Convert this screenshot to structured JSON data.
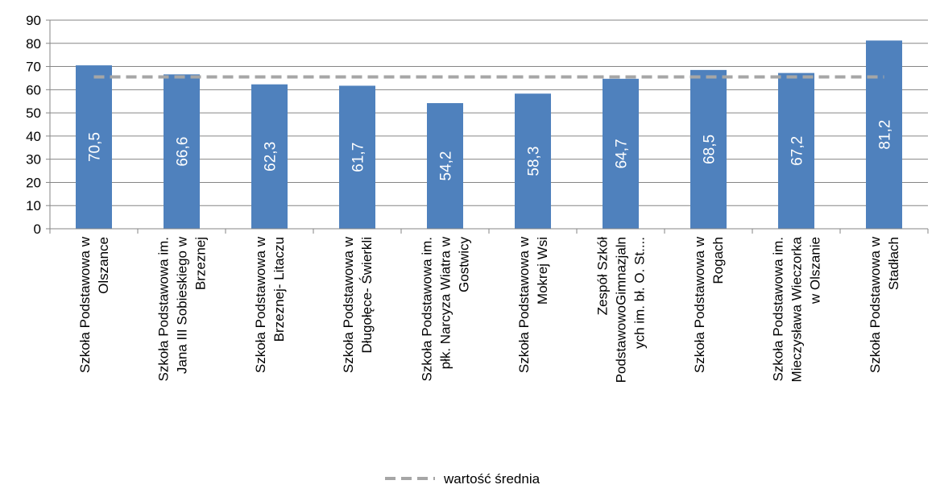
{
  "chart_data": {
    "type": "bar",
    "title": "",
    "xlabel": "",
    "ylabel": "",
    "ylim": [
      0,
      90
    ],
    "yticks": [
      0,
      10,
      20,
      30,
      40,
      50,
      60,
      70,
      80,
      90
    ],
    "grid": true,
    "categories": [
      "Szkoła Podstawowa w Olszance",
      "Szkoła Podstawowa im. Jana III Sobieskiego w Brzeznej",
      "Szkoła Podstawowa w Brzeznej- Litaczu",
      "Szkoła Podstawowa w Długołęce- Świerkli",
      "Szkoła Podstawowa im. płk. Narcyza Wiatra w Gostwicy",
      "Szkoła Podstawowa w Mokrej Wsi",
      "Zespół Szkół PodstawowoGimnazjalnych im. bł. O. St....",
      "Szkoła Podstawowa w Rogach",
      "Szkoła Podstawowa im. Mieczysława Wieczorka w Olszanie",
      "Szkoła Podstawowa w Stadłach"
    ],
    "category_lines": [
      [
        "Szkoła Podstawowa w",
        "Olszance"
      ],
      [
        "Szkoła Podstawowa im.",
        "Jana III Sobieskiego w",
        "Brzeznej"
      ],
      [
        "Szkoła Podstawowa w",
        "Brzeznej- Litaczu"
      ],
      [
        "Szkoła Podstawowa w",
        "Długołęce- Świerkli"
      ],
      [
        "Szkoła Podstawowa im.",
        "płk. Narcyza Wiatra w",
        "Gostwicy"
      ],
      [
        "Szkoła Podstawowa w",
        "Mokrej Wsi"
      ],
      [
        "Zespół Szkół",
        "PodstawowoGimnazjaln",
        "ych im. bł. O. St...."
      ],
      [
        "Szkoła Podstawowa w",
        "Rogach"
      ],
      [
        "Szkoła Podstawowa im.",
        "Mieczysława Wieczorka",
        "w Olszanie"
      ],
      [
        "Szkoła Podstawowa w",
        "Stadłach"
      ]
    ],
    "series": [
      {
        "values": [
          70.5,
          66.6,
          62.3,
          61.7,
          54.2,
          58.3,
          64.7,
          68.5,
          67.2,
          81.2
        ],
        "labels": [
          "70,5",
          "66,6",
          "62,3",
          "61,7",
          "54,2",
          "58,3",
          "64,7",
          "68,5",
          "67,2",
          "81,2"
        ],
        "color": "#4f81bd"
      },
      {
        "name": "wartość średnia",
        "type": "line",
        "dashed": true,
        "values": [
          65.5,
          65.5,
          65.5,
          65.5,
          65.5,
          65.5,
          65.5,
          65.5,
          65.5,
          65.5
        ],
        "color": "#a6a6a6"
      }
    ],
    "legend": {
      "position": "bottom",
      "entries": [
        "wartość średnia"
      ]
    }
  }
}
